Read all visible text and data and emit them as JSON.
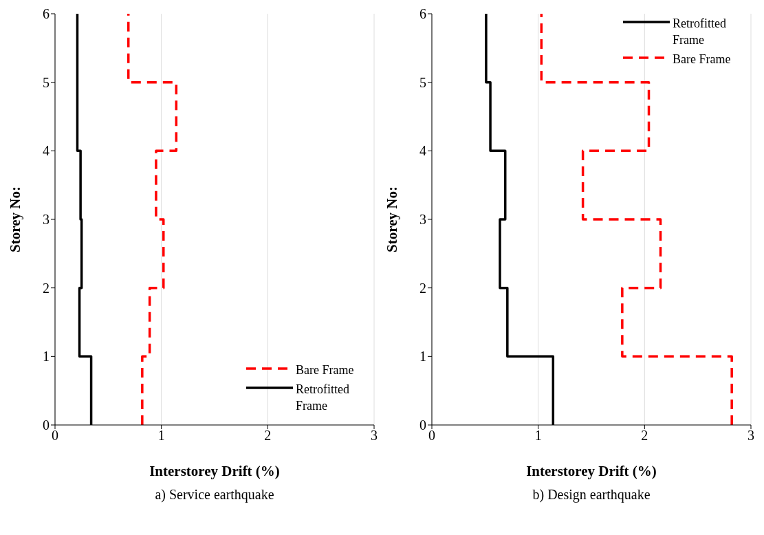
{
  "chart_data": [
    {
      "type": "line",
      "xlabel": "Interstorey Drift (%)",
      "ylabel": "Storey No:",
      "annotations": [
        "a) Service earthquake"
      ],
      "xlim": [
        0,
        3
      ],
      "xticks": [
        0,
        1,
        2,
        3
      ],
      "ylim": [
        0,
        6
      ],
      "yticks": [
        0,
        1,
        2,
        3,
        4,
        5,
        6
      ],
      "grid": "x",
      "legend": "bottom right",
      "series": [
        {
          "name": "Bare Frame",
          "color": "#ff0000",
          "line_style": "dashed",
          "x": [
            0.82,
            0.82,
            0.89,
            0.89,
            1.02,
            1.02,
            0.95,
            0.95,
            1.14,
            1.14,
            0.69,
            0.69
          ],
          "values": [
            0,
            1,
            1,
            2,
            2,
            3,
            3,
            4,
            4,
            5,
            5,
            6
          ]
        },
        {
          "name": "Retrofitted Frame",
          "color": "#000000",
          "line_style": "solid",
          "x": [
            0.34,
            0.34,
            0.23,
            0.23,
            0.25,
            0.25,
            0.24,
            0.24,
            0.21,
            0.21,
            0.21,
            0.21
          ],
          "values": [
            0,
            1,
            1,
            2,
            2,
            3,
            3,
            4,
            4,
            5,
            5,
            6
          ]
        }
      ]
    },
    {
      "type": "line",
      "xlabel": "Interstorey Drift (%)",
      "ylabel": "Storey No:",
      "annotations": [
        "b) Design earthquake"
      ],
      "xlim": [
        0,
        3
      ],
      "xticks": [
        0,
        1,
        2,
        3
      ],
      "ylim": [
        0,
        6
      ],
      "yticks": [
        0,
        1,
        2,
        3,
        4,
        5,
        6
      ],
      "grid": "x",
      "legend": "top right",
      "series": [
        {
          "name": "Retrofitted Frame",
          "color": "#000000",
          "line_style": "solid",
          "x": [
            1.14,
            1.14,
            0.71,
            0.71,
            0.64,
            0.64,
            0.69,
            0.69,
            0.55,
            0.55,
            0.51,
            0.51
          ],
          "values": [
            0,
            1,
            1,
            2,
            2,
            3,
            3,
            4,
            4,
            5,
            5,
            6
          ]
        },
        {
          "name": "Bare Frame",
          "color": "#ff0000",
          "line_style": "dashed",
          "x": [
            2.82,
            2.82,
            1.79,
            1.79,
            2.15,
            2.15,
            1.42,
            1.42,
            2.04,
            2.04,
            1.03,
            1.03
          ],
          "values": [
            0,
            1,
            1,
            2,
            2,
            3,
            3,
            4,
            4,
            5,
            5,
            6
          ]
        }
      ]
    }
  ]
}
